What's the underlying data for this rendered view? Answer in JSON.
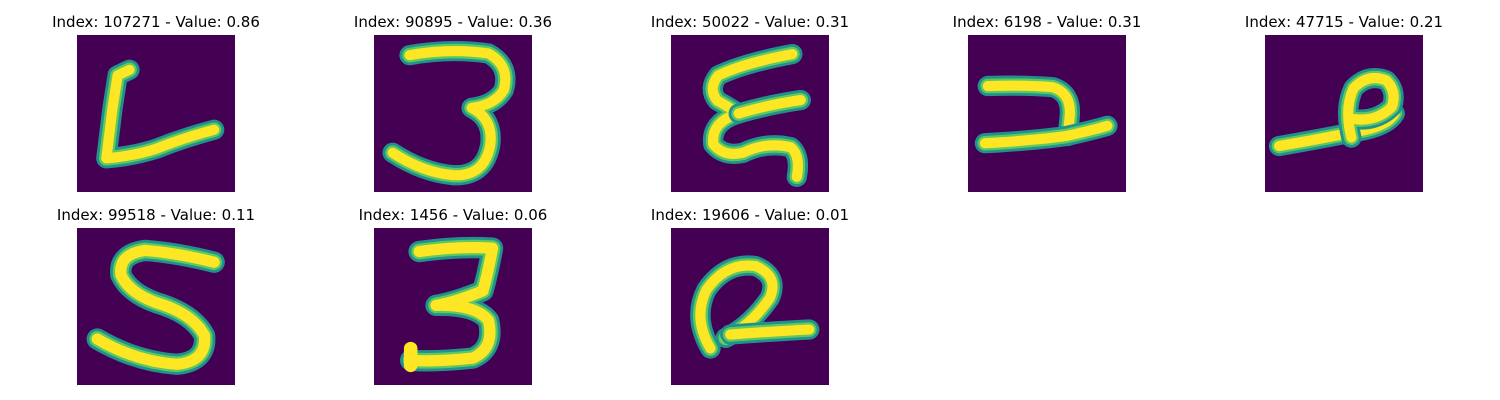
{
  "colors": {
    "background": "#440154",
    "stroke_edge": "#21918c",
    "stroke_mid": "#5ec962",
    "stroke_core": "#fde725"
  },
  "panels": [
    {
      "title": "Index: 107271 - Value: 0.86",
      "glyph": "handwritten-l"
    },
    {
      "title": "Index: 90895 - Value: 0.36",
      "glyph": "handwritten-3"
    },
    {
      "title": "Index: 50022 - Value: 0.31",
      "glyph": "handwritten-e-squiggle"
    },
    {
      "title": "Index: 6198 - Value: 0.31",
      "glyph": "handwritten-rotated-4"
    },
    {
      "title": "Index: 47715 - Value: 0.21",
      "glyph": "handwritten-rotated-9"
    },
    {
      "title": "Index: 99518 - Value: 0.11",
      "glyph": "handwritten-5"
    },
    {
      "title": "Index: 1456 - Value: 0.06",
      "glyph": "handwritten-3"
    },
    {
      "title": "Index: 19606 - Value: 0.01",
      "glyph": "handwritten-rotated-2"
    }
  ]
}
